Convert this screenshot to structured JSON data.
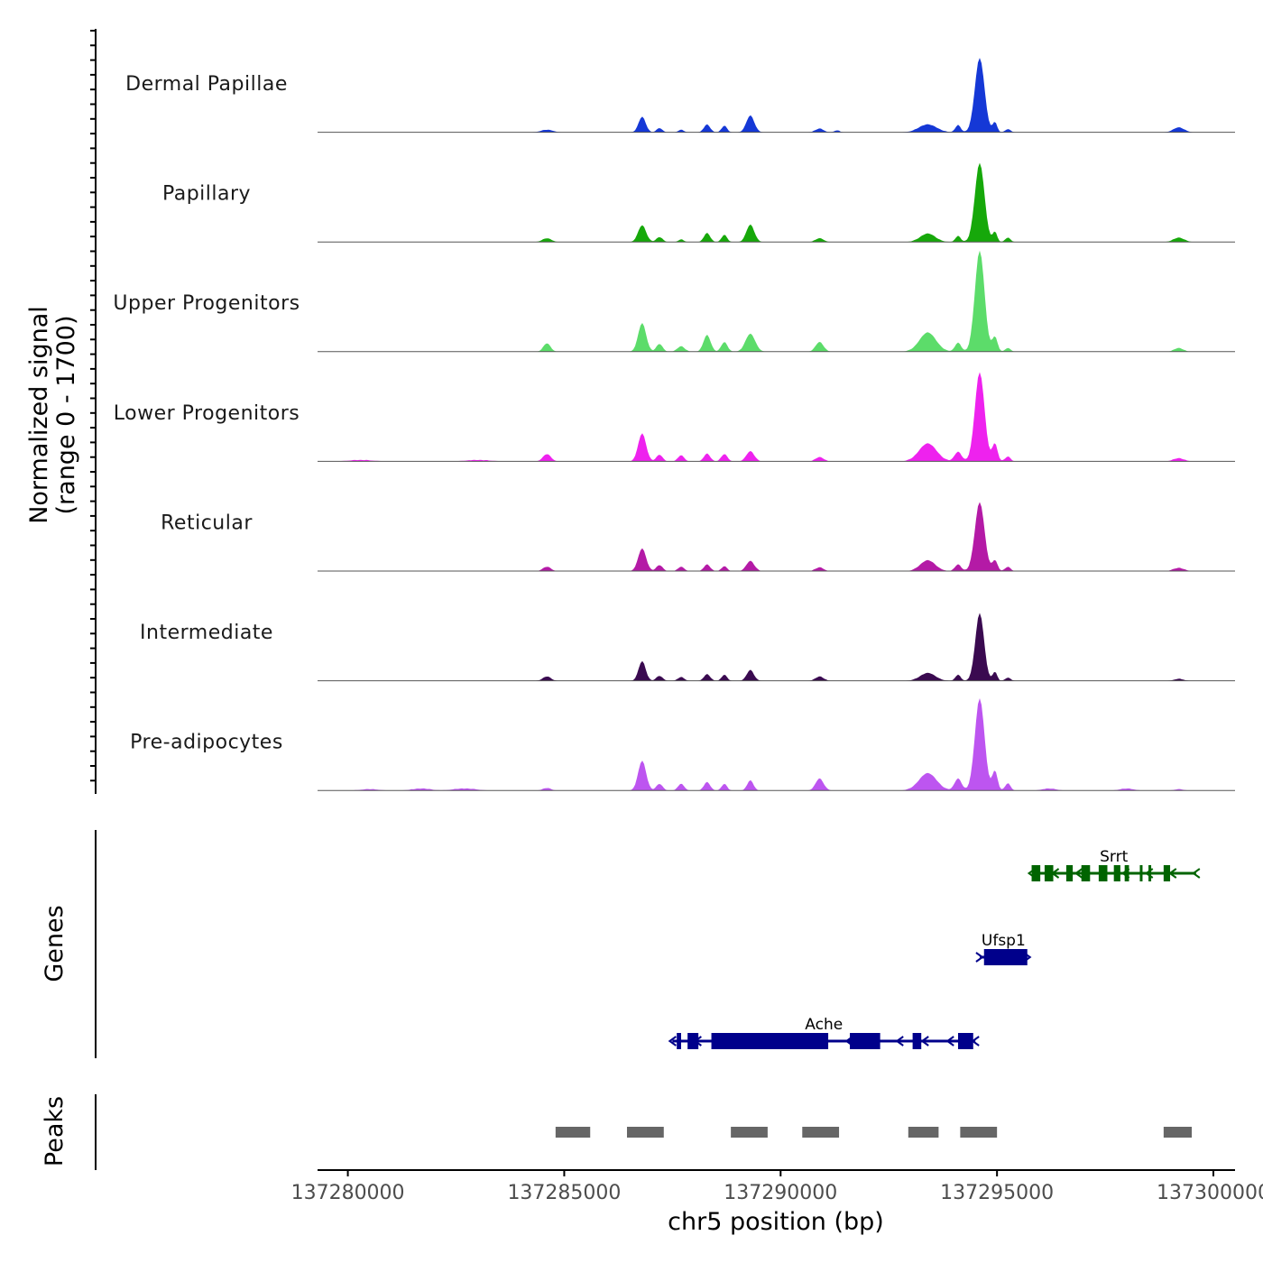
{
  "chart_data": {
    "type": "area",
    "title": "",
    "ylabel": "Normalized signal",
    "ylabel_range": "(range 0 - 1700)",
    "xlabel": "chr5 position (bp)",
    "xlim": [
      137279300,
      137300500
    ],
    "ylim": [
      0,
      1700
    ],
    "x_ticks": [
      137280000,
      137285000,
      137290000,
      137295000,
      137300000
    ],
    "x_tick_labels": [
      "137280000",
      "137285000",
      "137290000",
      "137295000",
      "137300000"
    ],
    "tracks": [
      {
        "name": "Dermal Papillae",
        "color": "#1538d6",
        "peaks": [
          [
            137284600,
            40,
            130
          ],
          [
            137286800,
            260,
            80
          ],
          [
            137287200,
            70,
            60
          ],
          [
            137287700,
            40,
            60
          ],
          [
            137288300,
            130,
            70
          ],
          [
            137288700,
            110,
            60
          ],
          [
            137289300,
            280,
            90
          ],
          [
            137290900,
            60,
            90
          ],
          [
            137291300,
            30,
            60
          ],
          [
            137293400,
            130,
            200
          ],
          [
            137294100,
            120,
            60
          ],
          [
            137294600,
            1250,
            110
          ],
          [
            137294950,
            170,
            50
          ],
          [
            137295250,
            50,
            60
          ],
          [
            137299200,
            80,
            120
          ]
        ]
      },
      {
        "name": "Papillary",
        "color": "#16a80a",
        "peaks": [
          [
            137284600,
            60,
            100
          ],
          [
            137286800,
            280,
            90
          ],
          [
            137287200,
            80,
            70
          ],
          [
            137287700,
            40,
            60
          ],
          [
            137288300,
            150,
            70
          ],
          [
            137288700,
            120,
            60
          ],
          [
            137289300,
            290,
            90
          ],
          [
            137290900,
            60,
            90
          ],
          [
            137293400,
            140,
            170
          ],
          [
            137294100,
            100,
            60
          ],
          [
            137294600,
            1330,
            110
          ],
          [
            137294950,
            170,
            50
          ],
          [
            137295250,
            70,
            60
          ],
          [
            137299200,
            70,
            120
          ]
        ]
      },
      {
        "name": "Upper Progenitors",
        "color": "#5cdc6a",
        "peaks": [
          [
            137284600,
            140,
            80
          ],
          [
            137286800,
            480,
            90
          ],
          [
            137287200,
            130,
            70
          ],
          [
            137287700,
            90,
            80
          ],
          [
            137288300,
            280,
            80
          ],
          [
            137288700,
            160,
            70
          ],
          [
            137289300,
            300,
            110
          ],
          [
            137290900,
            160,
            90
          ],
          [
            137293400,
            320,
            190
          ],
          [
            137294100,
            150,
            70
          ],
          [
            137294600,
            1700,
            110
          ],
          [
            137294950,
            250,
            60
          ],
          [
            137295250,
            60,
            60
          ],
          [
            137299200,
            60,
            100
          ]
        ]
      },
      {
        "name": "Lower Progenitors",
        "color": "#ee22ee",
        "peaks": [
          [
            137280300,
            20,
            300
          ],
          [
            137283000,
            20,
            300
          ],
          [
            137284600,
            120,
            90
          ],
          [
            137286800,
            470,
            90
          ],
          [
            137287200,
            110,
            70
          ],
          [
            137287700,
            100,
            70
          ],
          [
            137288300,
            130,
            70
          ],
          [
            137288700,
            120,
            70
          ],
          [
            137289300,
            170,
            90
          ],
          [
            137290900,
            70,
            90
          ],
          [
            137293400,
            300,
            200
          ],
          [
            137294100,
            160,
            80
          ],
          [
            137294600,
            1500,
            110
          ],
          [
            137294950,
            300,
            60
          ],
          [
            137295250,
            80,
            60
          ],
          [
            137299200,
            50,
            120
          ]
        ]
      },
      {
        "name": "Reticular",
        "color": "#b41aa6",
        "peaks": [
          [
            137284600,
            70,
            90
          ],
          [
            137286800,
            380,
            90
          ],
          [
            137287200,
            100,
            70
          ],
          [
            137287700,
            70,
            70
          ],
          [
            137288300,
            110,
            70
          ],
          [
            137288700,
            80,
            60
          ],
          [
            137289300,
            170,
            90
          ],
          [
            137290900,
            60,
            90
          ],
          [
            137293400,
            180,
            170
          ],
          [
            137294100,
            110,
            70
          ],
          [
            137294600,
            1160,
            110
          ],
          [
            137294950,
            180,
            60
          ],
          [
            137295250,
            70,
            60
          ],
          [
            137299200,
            50,
            120
          ]
        ]
      },
      {
        "name": "Intermediate",
        "color": "#3a0a50",
        "peaks": [
          [
            137284600,
            70,
            90
          ],
          [
            137286800,
            330,
            80
          ],
          [
            137287200,
            80,
            70
          ],
          [
            137287700,
            60,
            70
          ],
          [
            137288300,
            110,
            70
          ],
          [
            137288700,
            100,
            60
          ],
          [
            137289300,
            180,
            80
          ],
          [
            137290900,
            70,
            90
          ],
          [
            137293400,
            130,
            170
          ],
          [
            137294100,
            100,
            60
          ],
          [
            137294600,
            1140,
            100
          ],
          [
            137294950,
            150,
            50
          ],
          [
            137295250,
            50,
            60
          ],
          [
            137299200,
            30,
            100
          ]
        ]
      },
      {
        "name": "Pre-adipocytes",
        "color": "#bd55f0",
        "peaks": [
          [
            137280500,
            20,
            200
          ],
          [
            137281700,
            30,
            200
          ],
          [
            137282700,
            30,
            250
          ],
          [
            137284600,
            40,
            90
          ],
          [
            137286800,
            500,
            90
          ],
          [
            137287200,
            110,
            70
          ],
          [
            137287700,
            110,
            70
          ],
          [
            137288300,
            140,
            70
          ],
          [
            137288700,
            110,
            60
          ],
          [
            137289300,
            170,
            70
          ],
          [
            137290900,
            200,
            90
          ],
          [
            137293400,
            290,
            200
          ],
          [
            137294100,
            200,
            80
          ],
          [
            137294600,
            1550,
            110
          ],
          [
            137294950,
            330,
            60
          ],
          [
            137295250,
            120,
            60
          ],
          [
            137296200,
            30,
            150
          ],
          [
            137298000,
            30,
            150
          ],
          [
            137299200,
            20,
            100
          ]
        ]
      }
    ],
    "genes_label": "Genes",
    "genes": [
      {
        "name": "Srrt",
        "strand": "-",
        "color": "#006400",
        "start": 137295800,
        "end": 137299600,
        "exons": [
          [
            137295800,
            137296000
          ],
          [
            137296100,
            137296300
          ],
          [
            137296600,
            137296750
          ],
          [
            137296950,
            137297150
          ],
          [
            137297350,
            137297550
          ],
          [
            137297700,
            137297850
          ],
          [
            137297950,
            137298050
          ],
          [
            137298300,
            137298350
          ],
          [
            137298500,
            137298550
          ],
          [
            137298850,
            137299000
          ]
        ]
      },
      {
        "name": "Ufsp1",
        "strand": "+",
        "color": "#00008b",
        "start": 137294600,
        "end": 137295700,
        "exons": [
          [
            137294700,
            137295700
          ]
        ]
      },
      {
        "name": "Ache",
        "strand": "-",
        "color": "#00008b",
        "start": 137287500,
        "end": 137294500,
        "exons": [
          [
            137287600,
            137287700
          ],
          [
            137287850,
            137288100
          ],
          [
            137288400,
            137291100
          ],
          [
            137291600,
            137292300
          ],
          [
            137293050,
            137293250
          ],
          [
            137294100,
            137294450
          ]
        ]
      }
    ],
    "peaks_label": "Peaks",
    "peak_regions": [
      [
        137284800,
        137285600
      ],
      [
        137286450,
        137287300
      ],
      [
        137288850,
        137289700
      ],
      [
        137290500,
        137291350
      ],
      [
        137292950,
        137293650
      ],
      [
        137294150,
        137295000
      ],
      [
        137298850,
        137299500
      ]
    ]
  }
}
